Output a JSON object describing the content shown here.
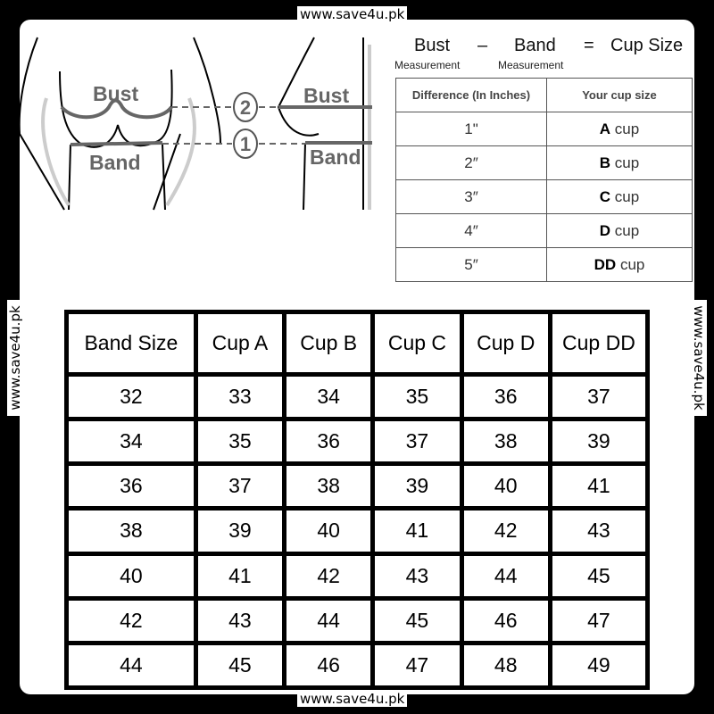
{
  "watermark": "www.save4u.pk",
  "illustration": {
    "bust_label": "Bust",
    "band_label": "Band",
    "marker_bust": "2",
    "marker_band": "1"
  },
  "formula": {
    "bust": "Bust",
    "minus": "–",
    "band": "Band",
    "equals": "=",
    "result": "Cup Size",
    "bust_sub": "Measurement",
    "band_sub": "Measurement"
  },
  "difference_table": {
    "headers": [
      "Difference (In Inches)",
      "Your cup size"
    ],
    "rows": [
      {
        "diff": "1\"",
        "cup_letter": "A",
        "cup_word": "cup"
      },
      {
        "diff": "2″",
        "cup_letter": "B",
        "cup_word": "cup"
      },
      {
        "diff": "3″",
        "cup_letter": "C",
        "cup_word": "cup"
      },
      {
        "diff": "4″",
        "cup_letter": "D",
        "cup_word": "cup"
      },
      {
        "diff": "5″",
        "cup_letter": "DD",
        "cup_word": "cup"
      }
    ]
  },
  "size_table": {
    "headers": [
      "Band Size",
      "Cup A",
      "Cup B",
      "Cup C",
      "Cup D",
      "Cup DD"
    ],
    "rows": [
      [
        "32",
        "33",
        "34",
        "35",
        "36",
        "37"
      ],
      [
        "34",
        "35",
        "36",
        "37",
        "38",
        "39"
      ],
      [
        "36",
        "37",
        "38",
        "39",
        "40",
        "41"
      ],
      [
        "38",
        "39",
        "40",
        "41",
        "42",
        "43"
      ],
      [
        "40",
        "41",
        "42",
        "43",
        "44",
        "45"
      ],
      [
        "42",
        "43",
        "44",
        "45",
        "46",
        "47"
      ],
      [
        "44",
        "45",
        "46",
        "47",
        "48",
        "49"
      ]
    ]
  }
}
